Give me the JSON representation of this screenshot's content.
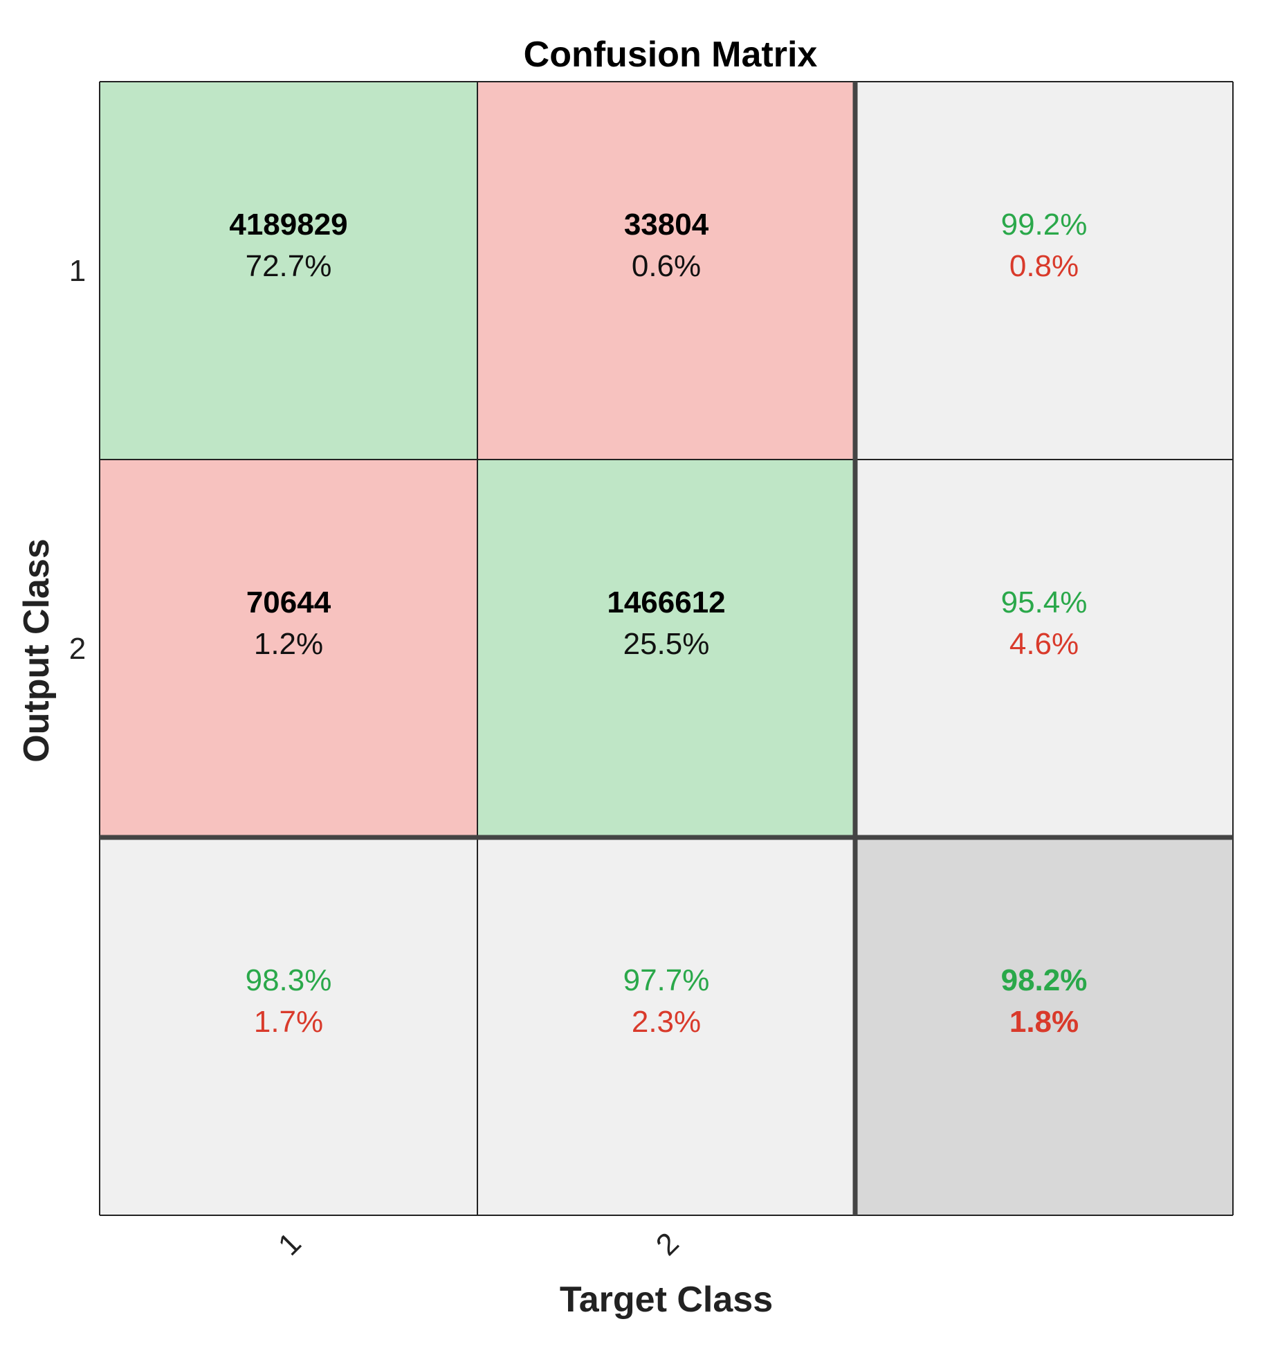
{
  "chart_data": {
    "type": "heatmap",
    "title": "Confusion Matrix",
    "xlabel": "Target Class",
    "ylabel": "Output Class",
    "x_tick_labels": [
      "1",
      "2"
    ],
    "y_tick_labels": [
      "1",
      "2"
    ],
    "matrix": [
      [
        {
          "count": "4189829",
          "percent": "72.7%",
          "kind": "correct"
        },
        {
          "count": "33804",
          "percent": "0.6%",
          "kind": "incorrect"
        }
      ],
      [
        {
          "count": "70644",
          "percent": "1.2%",
          "kind": "incorrect"
        },
        {
          "count": "1466612",
          "percent": "25.5%",
          "kind": "correct"
        }
      ]
    ],
    "row_summary": [
      {
        "correct": "99.2%",
        "incorrect": "0.8%"
      },
      {
        "correct": "95.4%",
        "incorrect": "4.6%"
      }
    ],
    "column_summary": [
      {
        "correct": "98.3%",
        "incorrect": "1.7%"
      },
      {
        "correct": "97.7%",
        "incorrect": "2.3%"
      }
    ],
    "overall": {
      "correct": "98.2%",
      "incorrect": "1.8%"
    }
  },
  "colors": {
    "correct_fill": "#bfe6c6",
    "incorrect_fill": "#f7c2bf",
    "summary_fill": "#f0f0f0",
    "overall_fill": "#d8d8d8",
    "correct_text": "#2aa84a",
    "incorrect_text": "#d93a2b",
    "grid_line": "#222222",
    "separator_line": "#444444"
  }
}
